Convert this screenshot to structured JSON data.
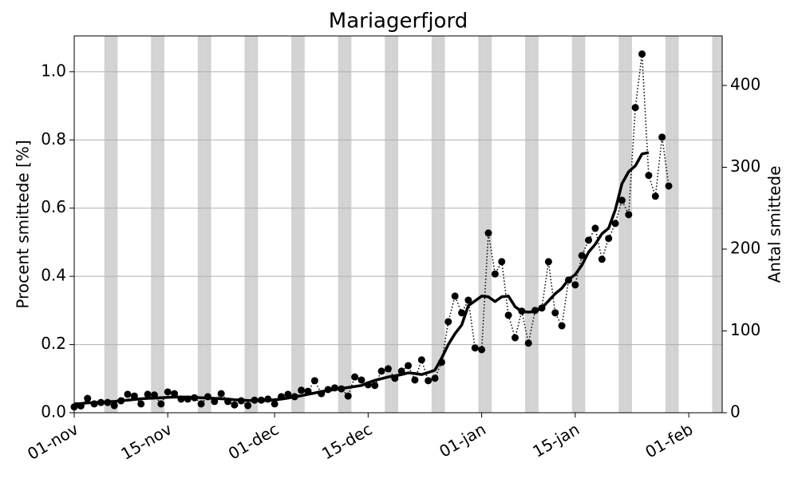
{
  "chart_data": {
    "type": "line",
    "title": "Mariagerfjord",
    "ylabel": "Procent smittede [%]",
    "y2label": "Antal smittede",
    "categories": [
      "01-nov",
      null,
      null,
      null,
      null,
      null,
      null,
      null,
      null,
      null,
      null,
      null,
      null,
      null,
      "15-nov",
      null,
      null,
      null,
      null,
      null,
      null,
      null,
      null,
      null,
      null,
      null,
      null,
      null,
      null,
      null,
      "01-dec",
      null,
      null,
      null,
      null,
      null,
      null,
      null,
      null,
      null,
      null,
      null,
      null,
      null,
      "15-dec",
      null,
      null,
      null,
      null,
      null,
      null,
      null,
      null,
      null,
      null,
      null,
      null,
      null,
      null,
      null,
      null,
      "01-jan",
      null,
      null,
      null,
      null,
      null,
      null,
      null,
      null,
      null,
      null,
      null,
      null,
      null,
      "15-jan",
      null,
      null,
      null,
      null,
      null,
      null,
      null,
      null,
      null,
      null,
      null,
      null,
      null,
      null,
      null,
      null,
      "01-feb",
      null,
      null,
      null,
      null,
      null
    ],
    "shaded": [
      false,
      false,
      false,
      false,
      false,
      true,
      true,
      false,
      false,
      false,
      false,
      false,
      true,
      true,
      false,
      false,
      false,
      false,
      false,
      true,
      true,
      false,
      false,
      false,
      false,
      false,
      true,
      true,
      false,
      false,
      false,
      false,
      false,
      true,
      true,
      false,
      false,
      false,
      false,
      false,
      true,
      true,
      false,
      false,
      false,
      false,
      false,
      true,
      true,
      false,
      false,
      false,
      false,
      false,
      true,
      true,
      false,
      false,
      false,
      false,
      false,
      true,
      true,
      false,
      false,
      false,
      false,
      false,
      true,
      true,
      false,
      false,
      false,
      false,
      false,
      true,
      true,
      false,
      false,
      false,
      false,
      false,
      true,
      true,
      false,
      false,
      false,
      false,
      false,
      true,
      true,
      false,
      false,
      false,
      false,
      false,
      true,
      true
    ],
    "shade_color": "#d3d3d3",
    "series": [
      {
        "color": "#000000",
        "linestyle": "dotted",
        "marker": true,
        "values": [
          0.017,
          0.02,
          0.042,
          0.026,
          0.03,
          0.03,
          0.021,
          0.035,
          0.054,
          0.049,
          0.026,
          0.054,
          0.052,
          0.026,
          0.061,
          0.056,
          0.04,
          0.04,
          0.044,
          0.026,
          0.047,
          0.033,
          0.056,
          0.033,
          0.023,
          0.035,
          0.021,
          0.037,
          0.037,
          0.04,
          0.026,
          0.047,
          0.054,
          0.047,
          0.066,
          0.063,
          0.094,
          0.056,
          0.068,
          0.073,
          0.07,
          0.049,
          0.105,
          0.096,
          0.082,
          0.08,
          0.122,
          0.129,
          0.101,
          0.122,
          0.138,
          0.096,
          0.155,
          0.094,
          0.101,
          0.148,
          0.267,
          0.342,
          0.293,
          0.33,
          0.19,
          0.185,
          0.527,
          0.407,
          0.443,
          0.286,
          0.22,
          0.298,
          0.204,
          0.3,
          0.307,
          0.443,
          0.293,
          0.255,
          0.389,
          0.375,
          0.461,
          0.506,
          0.541,
          0.45,
          0.511,
          0.555,
          0.623,
          0.581,
          0.895,
          1.052,
          0.696,
          0.635,
          0.808,
          0.665,
          null,
          null,
          null,
          null,
          null,
          null,
          null,
          null
        ]
      },
      {
        "color": "#000000",
        "linestyle": "solid",
        "marker": false,
        "values": [
          0.026,
          0.027,
          0.029,
          0.03,
          0.031,
          0.032,
          0.033,
          0.035,
          0.037,
          0.039,
          0.041,
          0.042,
          0.043,
          0.044,
          0.045,
          0.046,
          0.046,
          0.046,
          0.045,
          0.044,
          0.043,
          0.042,
          0.041,
          0.04,
          0.038,
          0.037,
          0.036,
          0.035,
          0.035,
          0.036,
          0.038,
          0.04,
          0.043,
          0.047,
          0.05,
          0.054,
          0.058,
          0.062,
          0.065,
          0.068,
          0.071,
          0.074,
          0.077,
          0.08,
          0.088,
          0.095,
          0.1,
          0.105,
          0.108,
          0.112,
          0.117,
          0.115,
          0.112,
          0.118,
          0.125,
          0.16,
          0.2,
          0.232,
          0.257,
          0.314,
          0.328,
          0.342,
          0.34,
          0.326,
          0.34,
          0.342,
          0.311,
          0.297,
          0.295,
          0.297,
          0.307,
          0.328,
          0.349,
          0.365,
          0.391,
          0.405,
          0.433,
          0.471,
          0.494,
          0.525,
          0.541,
          0.595,
          0.672,
          0.707,
          0.724,
          0.759,
          0.763,
          null,
          null,
          null,
          null,
          null,
          null,
          null,
          null,
          null,
          null,
          null
        ]
      }
    ],
    "ylim": [
      0,
      1.105
    ],
    "yticks": [
      {
        "value": 0,
        "label": "0.0"
      },
      0.2,
      0.4,
      0.6,
      0.8,
      {
        "value": 1,
        "label": "1.0"
      }
    ],
    "y2lim": [
      0,
      460.5
    ],
    "y2ticks": [
      0,
      100,
      200,
      300,
      400
    ],
    "grid": true,
    "grid_color": "#b0b0b0"
  }
}
